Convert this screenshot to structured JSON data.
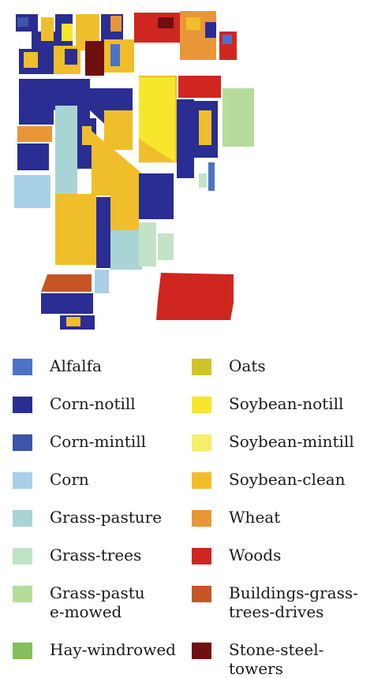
{
  "legend": {
    "left_column": [
      {
        "label": "Alfalfa",
        "color": "#4a74c8"
      },
      {
        "label": "Corn-notill",
        "color": "#2a2d92"
      },
      {
        "label": "Corn-mintill",
        "color": "#3d55a8"
      },
      {
        "label": "Corn",
        "color": "#a8d0e6"
      },
      {
        "label": "Grass-pasture",
        "color": "#a9d4d6"
      },
      {
        "label": "Grass-trees",
        "color": "#c3e3c8"
      },
      {
        "label": "Grass-pastu\ne-mowed",
        "color": "#b6dc9c"
      },
      {
        "label": "Hay-windrowed",
        "color": "#83c05c"
      }
    ],
    "right_column": [
      {
        "label": "Oats",
        "color": "#cec52a"
      },
      {
        "label": "Soybean-notill",
        "color": "#f6e62c"
      },
      {
        "label": "Soybean-mintill",
        "color": "#f6ee6a"
      },
      {
        "label": "Soybean-clean",
        "color": "#f0be2a"
      },
      {
        "label": "Wheat",
        "color": "#e99638"
      },
      {
        "label": "Woods",
        "color": "#d02620"
      },
      {
        "label": "Buildings-grass-\ntrees-drives",
        "color": "#c65526"
      },
      {
        "label": "Stone-steel-towers",
        "color": "#6e0f10"
      }
    ]
  }
}
